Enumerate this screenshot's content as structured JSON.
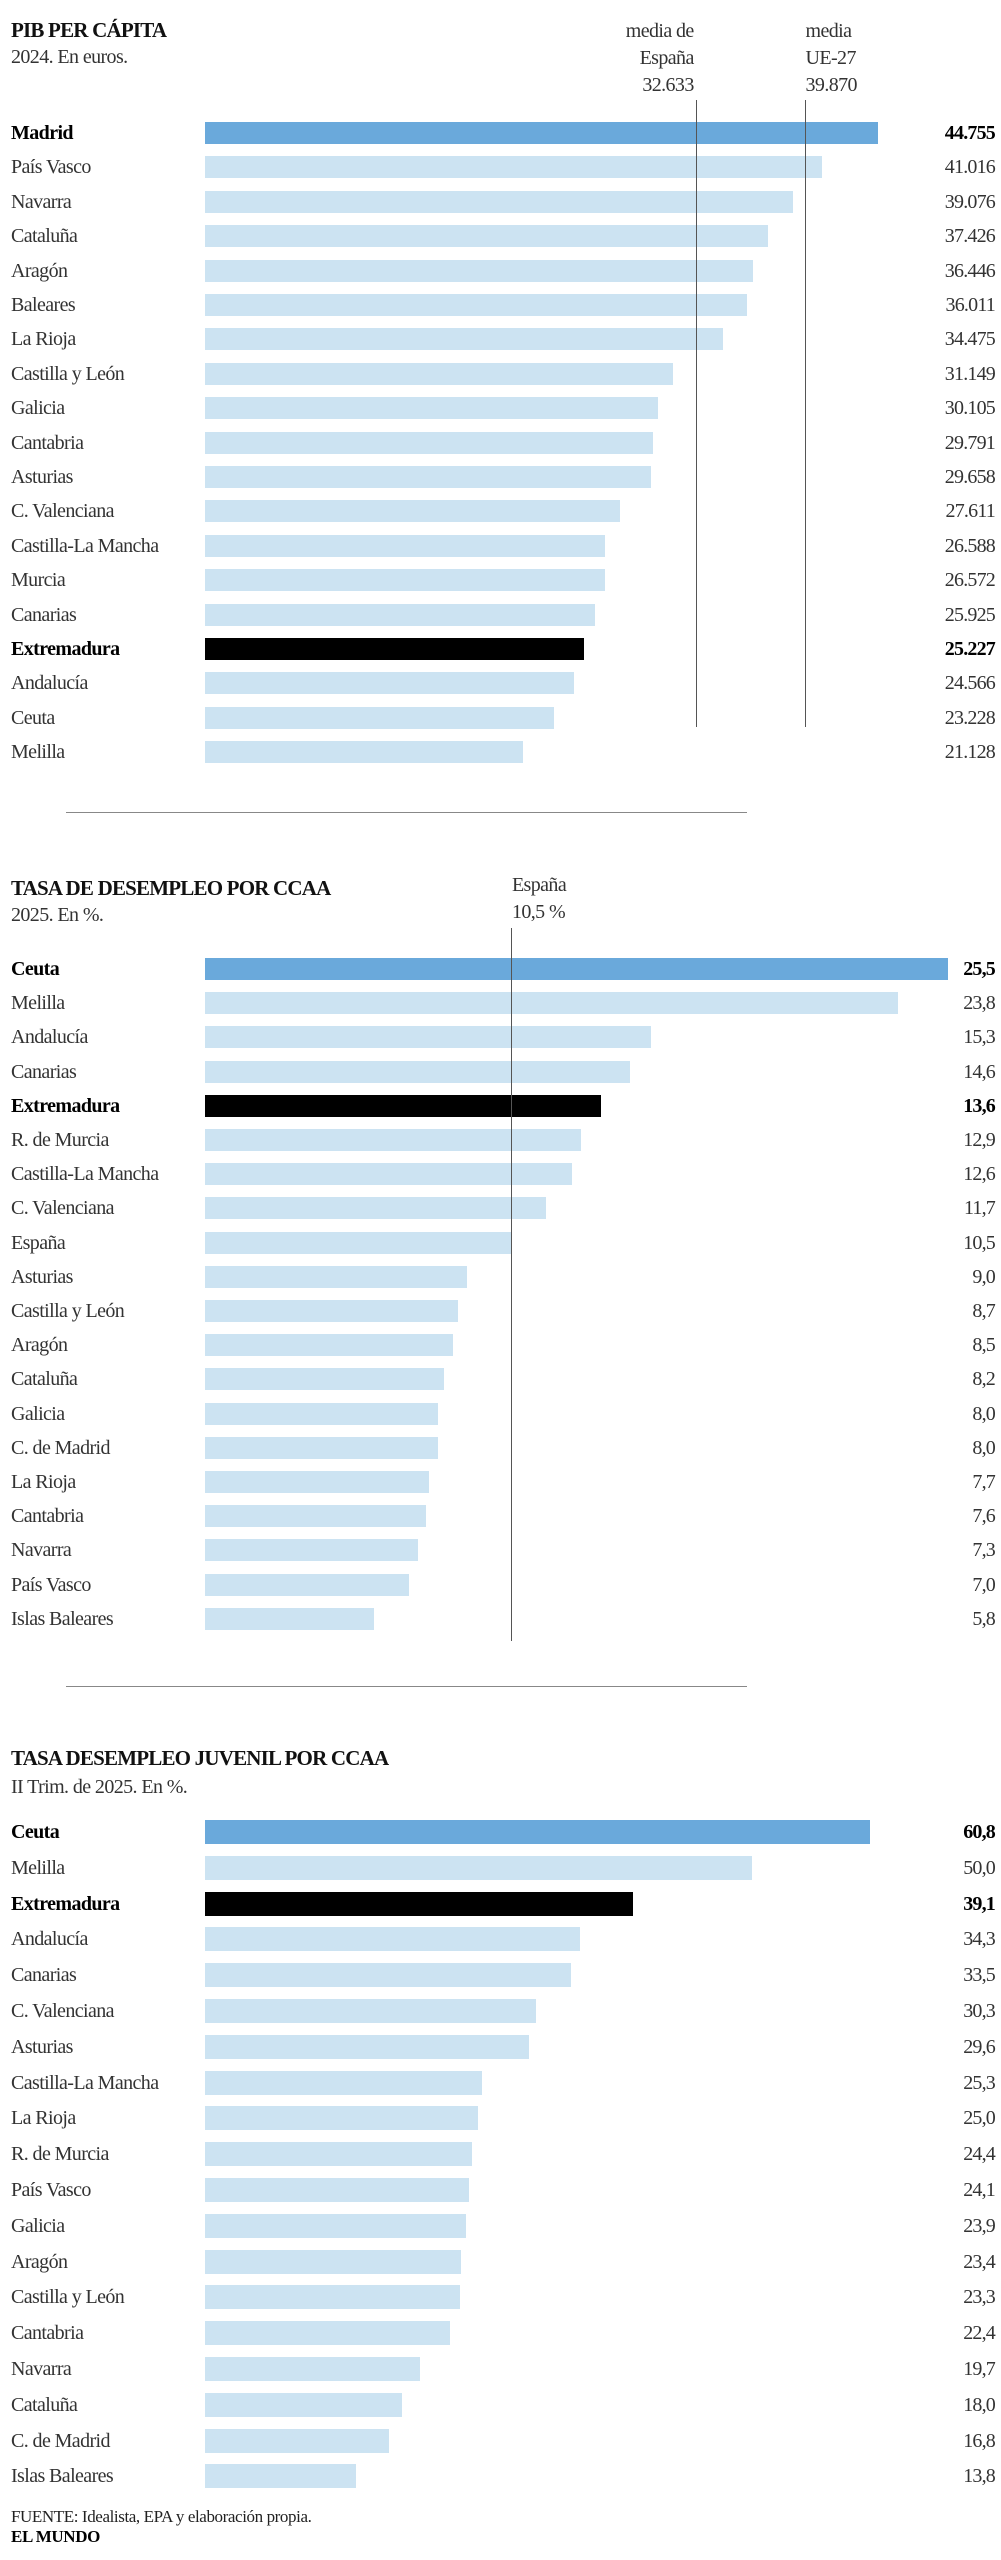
{
  "colors": {
    "highlight": "#6aa9db",
    "bar": "#cce3f2",
    "extremadura": "#000000",
    "refline": "#555555"
  },
  "chart_data": [
    {
      "type": "bar",
      "orientation": "horizontal",
      "title": "PIB PER CÁPITA",
      "subtitle": "2024. En euros.",
      "reference_lines": [
        {
          "lines": [
            "media de",
            "España",
            "32.633"
          ],
          "value": 32633,
          "align": "right"
        },
        {
          "lines": [
            "media",
            "UE-27",
            "39.870"
          ],
          "value": 39870,
          "align": "left"
        }
      ],
      "categories": [
        "Madrid",
        "País Vasco",
        "Navarra",
        "Cataluña",
        "Aragón",
        "Baleares",
        "La Rioja",
        "Castilla y León",
        "Galicia",
        "Cantabria",
        "Asturias",
        "C. Valenciana",
        "Castilla-La Mancha",
        "Murcia",
        "Canarias",
        "Extremadura",
        "Andalucía",
        "Ceuta",
        "Melilla"
      ],
      "values": [
        44755,
        41016,
        39076,
        37426,
        36446,
        36011,
        34475,
        31149,
        30105,
        29791,
        29658,
        27611,
        26588,
        26572,
        25925,
        25227,
        24566,
        23228,
        21128
      ],
      "labels": [
        "44.755",
        "41.016",
        "39.076",
        "37.426",
        "36.446",
        "36.011",
        "34.475",
        "31.149",
        "30.105",
        "29.791",
        "29.658",
        "27.611",
        "26.588",
        "26.572",
        "25.925",
        "25.227",
        "24.566",
        "23.228",
        "21.128"
      ],
      "highlight": "Madrid",
      "emphasis": "Extremadura"
    },
    {
      "type": "bar",
      "orientation": "horizontal",
      "title": "TASA DE DESEMPLEO POR CCAA",
      "subtitle": "2025. En %.",
      "reference_lines": [
        {
          "lines": [
            "España",
            "10,5 %"
          ],
          "value": 10.5,
          "align": "left"
        }
      ],
      "categories": [
        "Ceuta",
        "Melilla",
        "Andalucía",
        "Canarias",
        "Extremadura",
        "R. de Murcia",
        "Castilla-La Mancha",
        "C. Valenciana",
        "España",
        "Asturias",
        "Castilla y León",
        "Aragón",
        "Cataluña",
        "Galicia",
        "C. de Madrid",
        "La Rioja",
        "Cantabria",
        "Navarra",
        "País Vasco",
        "Islas Baleares"
      ],
      "values": [
        25.5,
        23.8,
        15.3,
        14.6,
        13.6,
        12.9,
        12.6,
        11.7,
        10.5,
        9.0,
        8.7,
        8.5,
        8.2,
        8.0,
        8.0,
        7.7,
        7.6,
        7.3,
        7.0,
        5.8
      ],
      "labels": [
        "25,5",
        "23,8",
        "15,3",
        "14,6",
        "13,6",
        "12,9",
        "12,6",
        "11,7",
        "10,5",
        "9,0",
        "8,7",
        "8,5",
        "8,2",
        "8,0",
        "8,0",
        "7,7",
        "7,6",
        "7,3",
        "7,0",
        "5,8"
      ],
      "highlight": "Ceuta",
      "emphasis": "Extremadura"
    },
    {
      "type": "bar",
      "orientation": "horizontal",
      "title": "TASA DESEMPLEO JUVENIL POR CCAA",
      "subtitle": "II Trim. de 2025. En %.",
      "reference_lines": [],
      "categories": [
        "Ceuta",
        "Melilla",
        "Extremadura",
        "Andalucía",
        "Canarias",
        "C. Valenciana",
        "Asturias",
        "Castilla-La Mancha",
        "La Rioja",
        "R. de Murcia",
        "País Vasco",
        "Galicia",
        "Aragón",
        "Castilla y León",
        "Cantabria",
        "Navarra",
        "Cataluña",
        "C. de Madrid",
        "Islas Baleares"
      ],
      "values": [
        60.8,
        50.0,
        39.1,
        34.3,
        33.5,
        30.3,
        29.6,
        25.3,
        25.0,
        24.4,
        24.1,
        23.9,
        23.4,
        23.3,
        22.4,
        19.7,
        18.0,
        16.8,
        13.8
      ],
      "labels": [
        "60,8",
        "50,0",
        "39,1",
        "34,3",
        "33,5",
        "30,3",
        "29,6",
        "25,3",
        "25,0",
        "24,4",
        "24,1",
        "23,9",
        "23,4",
        "23,3",
        "22,4",
        "19,7",
        "18,0",
        "16,8",
        "13,8"
      ],
      "highlight": "Ceuta",
      "emphasis": "Extremadura"
    }
  ],
  "footer": {
    "source": "FUENTE:  Idealista, EPA y elaboración propia.",
    "brand": "EL MUNDO"
  }
}
